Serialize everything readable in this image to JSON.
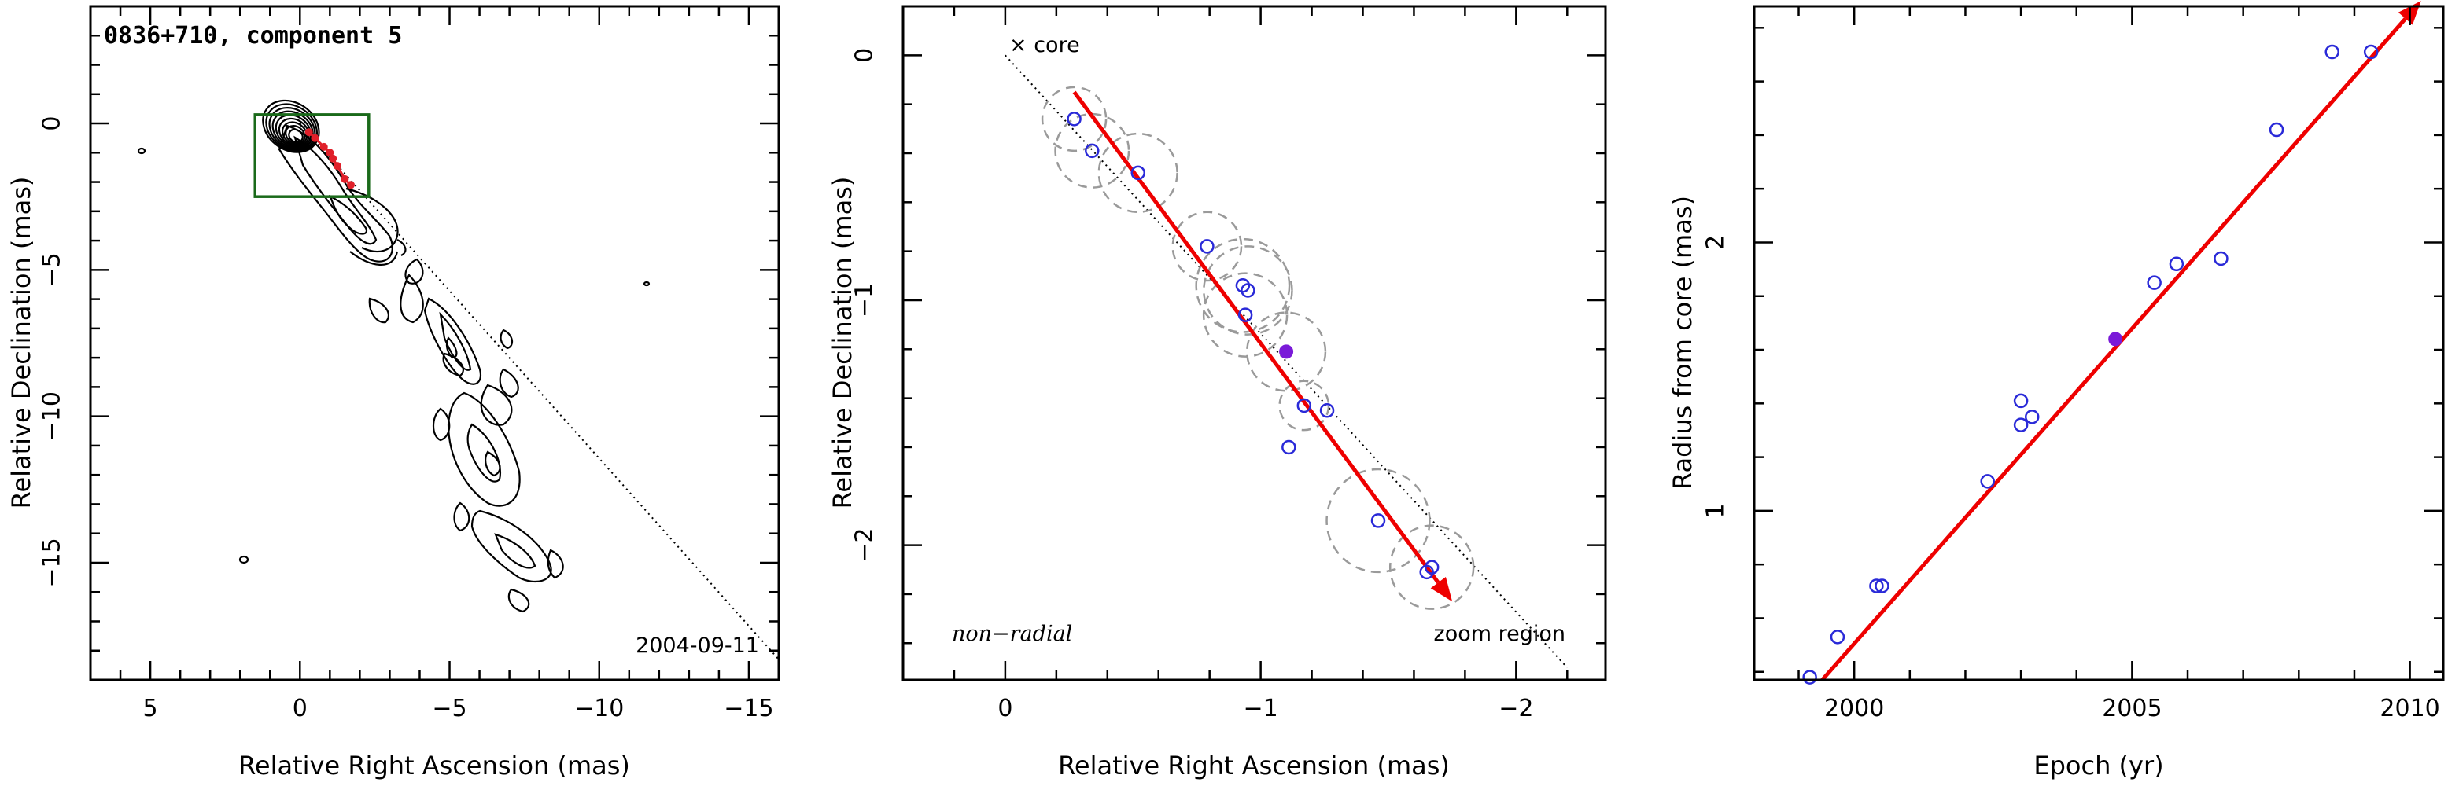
{
  "chart_data": [
    {
      "type": "contour_map",
      "title": "0836+710, component 5",
      "date_label": "2004-09-11",
      "xlabel": "Relative Right Ascension (mas)",
      "ylabel": "Relative Declination (mas)",
      "xlim": [
        7,
        -16
      ],
      "ylim": [
        -19,
        4
      ],
      "xticks": [
        5,
        0,
        -5,
        -10,
        -15
      ],
      "xtick_labels": [
        "5",
        "0",
        "−5",
        "−10",
        "−15"
      ],
      "yticks": [
        0,
        -5,
        -10,
        -15
      ],
      "ytick_labels": [
        "0",
        "−5",
        "−10",
        "−15"
      ],
      "zoom_box": {
        "x": [
          1.5,
          -2.3
        ],
        "y": [
          0.3,
          -2.5
        ]
      },
      "jet_axis_line": {
        "from": [
          0,
          0
        ],
        "to": [
          -16,
          -18.3
        ]
      },
      "component_positions": [
        {
          "x": -0.3,
          "y": -0.3
        },
        {
          "x": -0.5,
          "y": -0.5
        },
        {
          "x": -0.8,
          "y": -0.8
        },
        {
          "x": -1.0,
          "y": -1.0
        },
        {
          "x": -1.1,
          "y": -1.2
        },
        {
          "x": -1.25,
          "y": -1.45
        },
        {
          "x": -1.5,
          "y": -1.9
        },
        {
          "x": -1.7,
          "y": -2.1
        }
      ]
    },
    {
      "type": "scatter",
      "xlabel": "Relative Right Ascension (mas)",
      "ylabel": "Relative Declination (mas)",
      "xlim": [
        0.4,
        -2.35
      ],
      "ylim": [
        -2.55,
        0.2
      ],
      "xticks": [
        0,
        -1,
        -2
      ],
      "xtick_labels": [
        "0",
        "−1",
        "−2"
      ],
      "yticks": [
        0,
        -1,
        -2
      ],
      "ytick_labels": [
        "0",
        "−1",
        "−2"
      ],
      "core_label": "× core",
      "annotation_left": "non−radial",
      "annotation_right": "zoom region",
      "dotted_line": {
        "from": [
          0,
          0
        ],
        "to": [
          -2.2,
          -2.5
        ]
      },
      "arrow": {
        "from": [
          -0.27,
          -0.15
        ],
        "to": [
          -1.75,
          -2.23
        ]
      },
      "points": [
        {
          "x": -0.27,
          "y": -0.26
        },
        {
          "x": -0.34,
          "y": -0.39
        },
        {
          "x": -0.52,
          "y": -0.48
        },
        {
          "x": -0.79,
          "y": -0.78
        },
        {
          "x": -0.93,
          "y": -0.94
        },
        {
          "x": -0.95,
          "y": -0.96
        },
        {
          "x": -0.94,
          "y": -1.06
        },
        {
          "x": -1.17,
          "y": -1.43
        },
        {
          "x": -1.26,
          "y": -1.45
        },
        {
          "x": -1.11,
          "y": -1.6
        },
        {
          "x": -1.46,
          "y": -1.9
        },
        {
          "x": -1.65,
          "y": -2.11
        },
        {
          "x": -1.67,
          "y": -2.09
        }
      ],
      "highlight_point": {
        "x": -1.1,
        "y": -1.21
      },
      "uncertainty_circles": [
        {
          "x": -0.27,
          "y": -0.26,
          "r": 0.13
        },
        {
          "x": -0.34,
          "y": -0.39,
          "r": 0.15
        },
        {
          "x": -0.52,
          "y": -0.48,
          "r": 0.16
        },
        {
          "x": -0.79,
          "y": -0.78,
          "r": 0.14
        },
        {
          "x": -0.93,
          "y": -0.94,
          "r": 0.19
        },
        {
          "x": -0.95,
          "y": -0.96,
          "r": 0.18
        },
        {
          "x": -0.94,
          "y": -1.06,
          "r": 0.17
        },
        {
          "x": -1.1,
          "y": -1.21,
          "r": 0.16
        },
        {
          "x": -1.17,
          "y": -1.43,
          "r": 0.1
        },
        {
          "x": -1.46,
          "y": -1.9,
          "r": 0.21
        },
        {
          "x": -1.67,
          "y": -2.09,
          "r": 0.17
        }
      ]
    },
    {
      "type": "scatter",
      "xlabel": "Epoch (yr)",
      "ylabel": "Radius from core (mas)",
      "xlim": [
        1998.2,
        2010.6
      ],
      "ylim": [
        0.37,
        2.88
      ],
      "xticks": [
        2000,
        2005,
        2010
      ],
      "xtick_labels": [
        "2000",
        "2005",
        "2010"
      ],
      "yticks": [
        1,
        2
      ],
      "ytick_labels": [
        "1",
        "2"
      ],
      "fit_arrow": {
        "from": [
          1998.7,
          0.2
        ],
        "to": [
          2010.2,
          2.9
        ]
      },
      "points": [
        {
          "x": 1999.2,
          "y": 0.38
        },
        {
          "x": 1999.7,
          "y": 0.53
        },
        {
          "x": 2000.4,
          "y": 0.72
        },
        {
          "x": 2000.5,
          "y": 0.72
        },
        {
          "x": 2002.4,
          "y": 1.11
        },
        {
          "x": 2003.0,
          "y": 1.32
        },
        {
          "x": 2003.0,
          "y": 1.41
        },
        {
          "x": 2003.2,
          "y": 1.35
        },
        {
          "x": 2005.4,
          "y": 1.85
        },
        {
          "x": 2005.8,
          "y": 1.92
        },
        {
          "x": 2006.6,
          "y": 1.94
        },
        {
          "x": 2007.6,
          "y": 2.42
        },
        {
          "x": 2008.6,
          "y": 2.71
        },
        {
          "x": 2009.3,
          "y": 2.71
        }
      ],
      "highlight_point": {
        "x": 2004.7,
        "y": 1.64
      }
    }
  ]
}
